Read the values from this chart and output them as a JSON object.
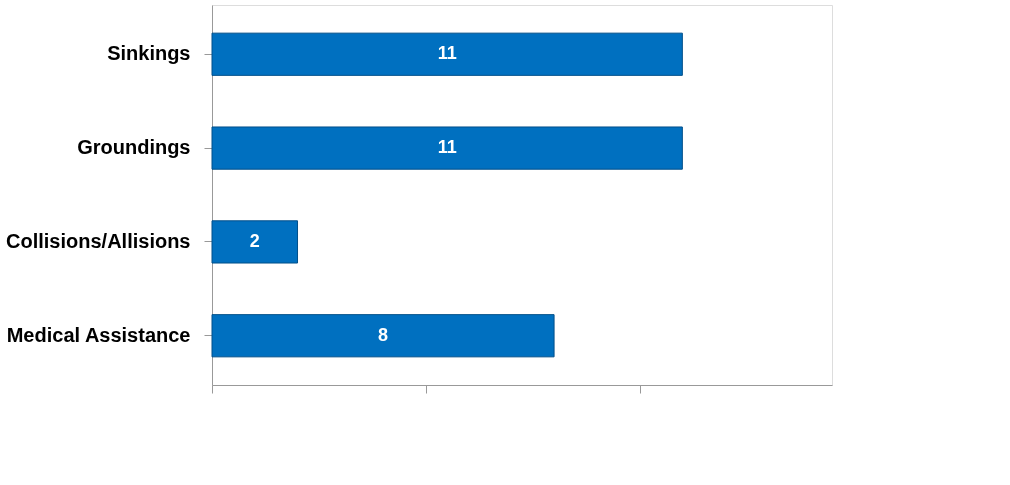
{
  "chart_data": {
    "type": "bar",
    "orientation": "horizontal",
    "categories": [
      "Sinkings",
      "Groundings",
      "Collisions/Allisions",
      "Medical Assistance"
    ],
    "values": [
      11,
      11,
      2,
      8
    ],
    "color": "#0070c0",
    "data_labels": true,
    "xlim": [
      0,
      14.5
    ],
    "xticks": [
      {
        "value": 0,
        "label": null
      },
      {
        "value": 5,
        "label": null
      },
      {
        "value": 10,
        "label": null
      }
    ],
    "tick_labels": "y",
    "grid": false
  }
}
